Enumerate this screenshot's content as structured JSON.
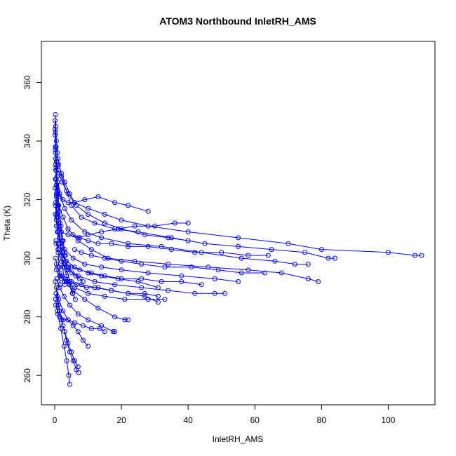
{
  "chart_data": {
    "type": "scatter",
    "title": "ATOM3 Northbound InletRH_AMS",
    "xlabel": "InletRH_AMS",
    "ylabel": "Theta (K)",
    "xlim": [
      -4,
      114
    ],
    "ylim": [
      250,
      374
    ],
    "xticks": [
      0,
      20,
      40,
      60,
      80,
      100
    ],
    "yticks": [
      260,
      280,
      300,
      320,
      340,
      360
    ],
    "grid": false,
    "color": "#0000ff",
    "marker": "open-circle",
    "connected": true,
    "series": [
      {
        "x": [
          0.2,
          0.3,
          0.5,
          0.8,
          1.2,
          2.0,
          3.0,
          4.5,
          6.0,
          10.0,
          15.0,
          20.0,
          28.0,
          40.0,
          55.0,
          70.0,
          80.0,
          100.0,
          108.0,
          110.0
        ],
        "y": [
          349,
          345,
          340,
          336,
          332,
          329,
          326,
          322,
          319,
          317,
          315,
          313,
          311,
          309,
          307,
          305,
          303,
          302,
          301,
          301
        ]
      },
      {
        "x": [
          0.4,
          1.0,
          2.0,
          3.5,
          5.0,
          8.0,
          12.0,
          18.0,
          25.0,
          35.0,
          45.0,
          55.0,
          65.0,
          75.0,
          82.0,
          84.0
        ],
        "y": [
          338,
          334,
          328,
          323,
          318,
          314,
          312,
          310,
          309,
          307,
          305,
          304,
          303,
          302,
          300,
          300
        ]
      },
      {
        "x": [
          0.3,
          0.8,
          1.5,
          3.0,
          5.0,
          9.0,
          14.0,
          22.0,
          32.0,
          44.0,
          56.0,
          66.0,
          72.0,
          76.0
        ],
        "y": [
          330,
          326,
          322,
          317,
          313,
          309,
          307,
          305,
          304,
          302,
          300,
          299,
          298,
          298
        ]
      },
      {
        "x": [
          0.5,
          1.2,
          2.5,
          4.0,
          7.0,
          11.0,
          16.0,
          24.0,
          34.0,
          46.0,
          58.0,
          68.0,
          76.0,
          79.0
        ],
        "y": [
          322,
          318,
          314,
          310,
          306,
          303,
          300,
          299,
          298,
          297,
          296,
          295,
          293,
          292
        ]
      },
      {
        "x": [
          0.2,
          0.6,
          1.5,
          3.0,
          5.5,
          9.0,
          14.0,
          20.0,
          28.0,
          38.0,
          48.0,
          55.0
        ],
        "y": [
          315,
          311,
          307,
          303,
          300,
          298,
          297,
          296,
          295,
          294,
          293,
          292
        ]
      },
      {
        "x": [
          0.4,
          1.0,
          2.0,
          4.0,
          7.0,
          12.0,
          18.0,
          26.0,
          34.0,
          42.0,
          48.0,
          51.0
        ],
        "y": [
          306,
          302,
          299,
          296,
          294,
          292,
          291,
          290,
          289,
          288,
          288,
          288
        ]
      },
      {
        "x": [
          0.3,
          0.8,
          1.8,
          3.5,
          6.0,
          10.0,
          15.0,
          21.0,
          28.0,
          33.0
        ],
        "y": [
          300,
          297,
          294,
          292,
          290,
          288,
          287,
          286,
          286,
          286
        ]
      },
      {
        "x": [
          0.5,
          1.5,
          3.0,
          5.5,
          9.0,
          13.0,
          18.0,
          21.0,
          22.0
        ],
        "y": [
          298,
          295,
          292,
          289,
          286,
          283,
          280,
          279,
          279
        ]
      },
      {
        "x": [
          0.6,
          1.5,
          2.8,
          4.5,
          7.0,
          10.0,
          14.0,
          17.5,
          18.0
        ],
        "y": [
          293,
          290,
          287,
          284,
          281,
          279,
          277,
          275,
          275
        ]
      },
      {
        "x": [
          0.5,
          1.2,
          2.5,
          4.0,
          5.5,
          7.0,
          8.5,
          10.0
        ],
        "y": [
          290,
          286,
          282,
          279,
          277,
          275,
          272,
          270
        ]
      },
      {
        "x": [
          0.4,
          1.0,
          2.0,
          3.0,
          4.0,
          5.0,
          6.0,
          7.0
        ],
        "y": [
          288,
          284,
          279,
          275,
          271,
          268,
          265,
          263
        ]
      },
      {
        "x": [
          0.2,
          0.8,
          1.5,
          2.5,
          3.5,
          4.5,
          5.5,
          6.5,
          7.2
        ],
        "y": [
          292,
          287,
          282,
          277,
          272,
          268,
          265,
          262,
          261
        ]
      },
      {
        "x": [
          0.3,
          0.9,
          1.8,
          2.8,
          3.6,
          4.2,
          4.5
        ],
        "y": [
          286,
          281,
          276,
          270,
          265,
          260,
          257
        ]
      },
      {
        "x": [
          0.5,
          2.0,
          4.0,
          7.0,
          10.0,
          14.0,
          19.0,
          24.0,
          30.0,
          36.0,
          40.0
        ],
        "y": [
          311,
          309,
          308,
          307,
          308,
          309,
          310,
          311,
          311,
          312,
          312
        ]
      },
      {
        "x": [
          0.2,
          0.5,
          1.0,
          1.5,
          2.5,
          4.0,
          6.0,
          9.0,
          13.0,
          18.0,
          22.0,
          28.0
        ],
        "y": [
          327,
          325,
          323,
          321,
          320,
          319,
          319,
          320,
          321,
          319,
          318,
          316
        ]
      },
      {
        "x": [
          0.3,
          1.0,
          2.2,
          4.0,
          6.5,
          10.0,
          15.0,
          20.0,
          27.0,
          34.0,
          40.0
        ],
        "y": [
          334,
          330,
          326,
          322,
          318,
          315,
          312,
          310,
          308,
          307,
          306
        ]
      },
      {
        "x": [
          0.4,
          1.0,
          2.0,
          3.5,
          6.0,
          10.0,
          14.0,
          19.0,
          25.0,
          31.0
        ],
        "y": [
          305,
          303,
          301,
          299,
          297,
          295,
          294,
          293,
          292,
          290
        ]
      },
      {
        "x": [
          0.5,
          1.5,
          3.0,
          5.0,
          8.0,
          12.0,
          17.0,
          22.0,
          27.0,
          31.0
        ],
        "y": [
          296,
          294,
          293,
          292,
          291,
          290,
          289,
          288,
          287,
          285
        ]
      },
      {
        "x": [
          0.3,
          0.8,
          1.5,
          2.5,
          4.0,
          6.0,
          8.5,
          11.0,
          13.5,
          15.0
        ],
        "y": [
          284,
          282,
          280,
          279,
          279,
          278,
          277,
          276,
          276,
          275
        ]
      },
      {
        "x": [
          0.1,
          0.2,
          0.3,
          0.5,
          0.7,
          1.0,
          1.4,
          1.9,
          2.5,
          3.2
        ],
        "y": [
          347,
          343,
          338,
          333,
          328,
          322,
          316,
          311,
          306,
          301
        ]
      },
      {
        "x": [
          0.1,
          0.2,
          0.4,
          0.6,
          0.9,
          1.3,
          1.8,
          2.4,
          3.0
        ],
        "y": [
          344,
          338,
          331,
          325,
          318,
          311,
          304,
          297,
          291
        ]
      },
      {
        "x": [
          0.2,
          0.4,
          0.7,
          1.1,
          1.6,
          2.2,
          2.9,
          3.7,
          4.5,
          5.4
        ],
        "y": [
          336,
          330,
          324,
          318,
          312,
          306,
          301,
          296,
          292,
          288
        ]
      },
      {
        "x": [
          0.1,
          0.3,
          0.6,
          1.0,
          1.5,
          2.1,
          2.8,
          3.6,
          4.4,
          5.3,
          6.2
        ],
        "y": [
          324,
          319,
          314,
          309,
          305,
          301,
          297,
          294,
          291,
          288,
          286
        ]
      },
      {
        "x": [
          0.2,
          0.5,
          1.0,
          1.6,
          2.4,
          3.2,
          4.2,
          5.2,
          6.3,
          7.4,
          8.5
        ],
        "y": [
          318,
          313,
          309,
          305,
          302,
          299,
          297,
          295,
          294,
          293,
          292
        ]
      },
      {
        "x": [
          0.1,
          0.2,
          0.3,
          0.4,
          0.5,
          0.6,
          0.8,
          1.0,
          1.3,
          1.6
        ],
        "y": [
          342,
          337,
          332,
          327,
          321,
          315,
          309,
          303,
          297,
          291
        ]
      },
      {
        "x": [
          4.0,
          5.5,
          7.5,
          10.0,
          13.0,
          17.0,
          22.0,
          28.0,
          35.0,
          42.0,
          50.0,
          58.0,
          64.0
        ],
        "y": [
          310,
          308,
          307,
          306,
          305,
          305,
          304,
          304,
          303,
          302,
          302,
          301,
          301
        ]
      },
      {
        "x": [
          6.0,
          8.0,
          11.0,
          15.0,
          20.0,
          26.0,
          33.0,
          41.0,
          49.0,
          56.0,
          63.0
        ],
        "y": [
          303,
          302,
          301,
          300,
          299,
          298,
          297,
          297,
          296,
          295,
          295
        ]
      },
      {
        "x": [
          3.0,
          5.0,
          7.5,
          11.0,
          15.0,
          20.0,
          26.0,
          32.0,
          38.0,
          44.0
        ],
        "y": [
          298,
          297,
          296,
          295,
          294,
          293,
          293,
          292,
          292,
          291
        ]
      },
      {
        "x": [
          2.0,
          4.0,
          6.5,
          9.5,
          13.0,
          17.0,
          22.0,
          27.0,
          31.0
        ],
        "y": [
          293,
          292,
          291,
          290,
          290,
          289,
          288,
          288,
          287
        ]
      }
    ]
  }
}
